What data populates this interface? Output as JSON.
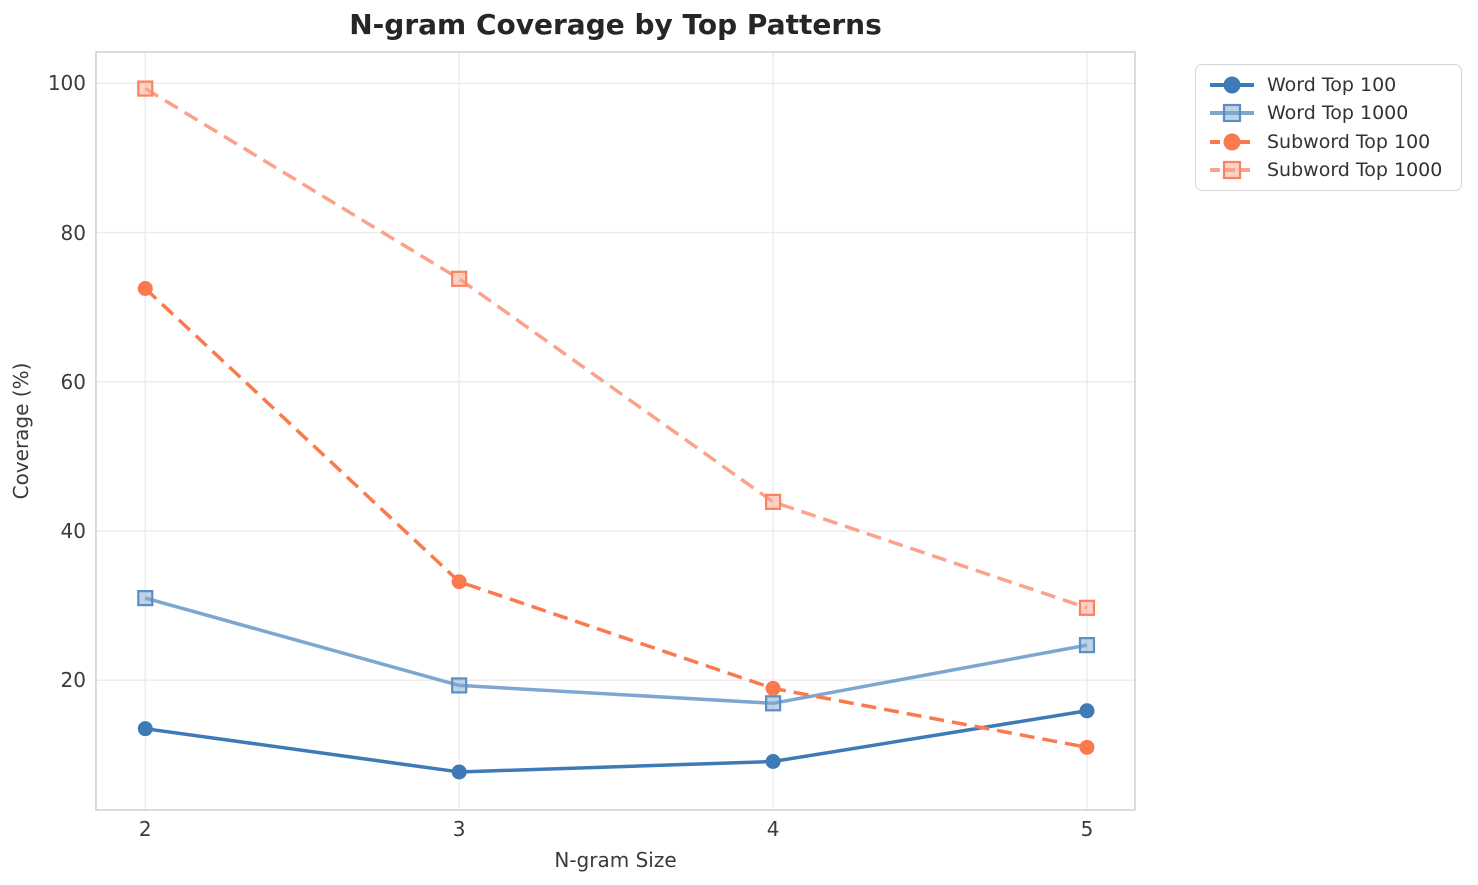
{
  "chart_data": {
    "type": "line",
    "title": "N-gram Coverage by Top Patterns",
    "xlabel": "N-gram Size",
    "ylabel": "Coverage (%)",
    "x": [
      2,
      3,
      4,
      5
    ],
    "x_ticks": [
      "2",
      "3",
      "4",
      "5"
    ],
    "y_ticks": [
      "20",
      "40",
      "60",
      "80",
      "100"
    ],
    "y_tick_values": [
      20,
      40,
      60,
      80,
      100
    ],
    "xlim": [
      1.843,
      5.153
    ],
    "ylim": [
      2.6,
      104.2
    ],
    "grid": true,
    "legend_position": "outside-upper-right",
    "series": [
      {
        "name": "Word Top 100",
        "values": [
          13.5,
          7.7,
          9.1,
          15.9
        ],
        "color": "#3d7ab6",
        "marker": "circle",
        "line_style": "solid",
        "marker_edge": "#3d7ab6"
      },
      {
        "name": "Word Top 1000",
        "values": [
          31.0,
          19.3,
          16.9,
          24.7
        ],
        "color": "#7ea7d0",
        "marker": "square",
        "line_style": "solid",
        "marker_edge": "#5b8ec5"
      },
      {
        "name": "Subword Top 100",
        "values": [
          72.5,
          33.2,
          18.9,
          11.0
        ],
        "color": "#fa7a4e",
        "marker": "circle",
        "line_style": "dashed",
        "marker_edge": "#fa7a4e"
      },
      {
        "name": "Subword Top 1000",
        "values": [
          99.3,
          73.8,
          43.9,
          29.7
        ],
        "color": "#fba38a",
        "marker": "square",
        "line_style": "dashed",
        "marker_edge": "#f9835e"
      }
    ]
  },
  "style_colors": {
    "grid": "#ececec",
    "spine": "#cccccc",
    "title": "#262626",
    "tick_label": "#3b3b3b",
    "legend_border": "#d5d5d5",
    "legend_text": "#333333"
  }
}
